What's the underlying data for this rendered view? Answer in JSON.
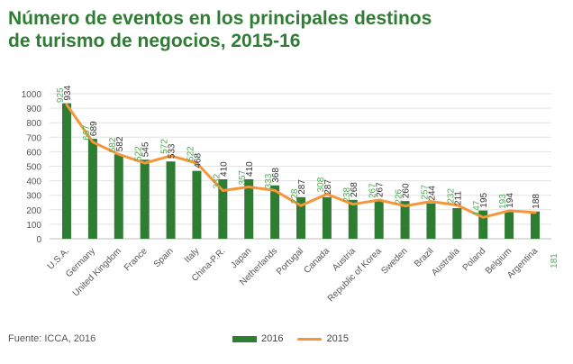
{
  "header": {
    "title_line1": "Número de eventos en los principales destinos",
    "title_line2": "de turismo de negocios, 2015-16"
  },
  "source": "Fuente: ICCA, 2016",
  "colors": {
    "bar": "#2e7d32",
    "line": "#f5963a",
    "title": "#2e7d32",
    "label_2015": "#4caf50"
  },
  "chart_data": {
    "type": "bar",
    "categories": [
      "U.S.A.",
      "Germany",
      "United Kingdom",
      "France",
      "Spain",
      "Italy",
      "China-P.R.",
      "Japan",
      "Netherlands",
      "Portugal",
      "Canada",
      "Austria",
      "Republic of Korea",
      "Sweden",
      "Brazil",
      "Australia",
      "Poland",
      "Belgium",
      "Argentina"
    ],
    "series": [
      {
        "name": "2016",
        "type": "bar",
        "values": [
          934,
          689,
          582,
          545,
          533,
          468,
          410,
          410,
          368,
          287,
          287,
          268,
          267,
          260,
          244,
          211,
          195,
          194,
          188
        ]
      },
      {
        "name": "2015",
        "type": "line",
        "values": [
          925,
          667,
          582,
          522,
          572,
          522,
          332,
          357,
          333,
          228,
          308,
          238,
          267,
          226,
          257,
          232,
          147,
          193,
          181
        ]
      }
    ],
    "value_labels_2015": [
      "925",
      "667",
      "582",
      "522",
      "572",
      "522",
      "332",
      "357",
      "333",
      "228",
      "308",
      "238",
      "267",
      "226",
      "257",
      "232",
      "147",
      "193",
      "181"
    ],
    "yticks": [
      0,
      100,
      200,
      300,
      400,
      500,
      600,
      700,
      800,
      900,
      1000
    ],
    "ylim": [
      0,
      1000
    ],
    "grid": true,
    "legend_position": "bottom"
  }
}
